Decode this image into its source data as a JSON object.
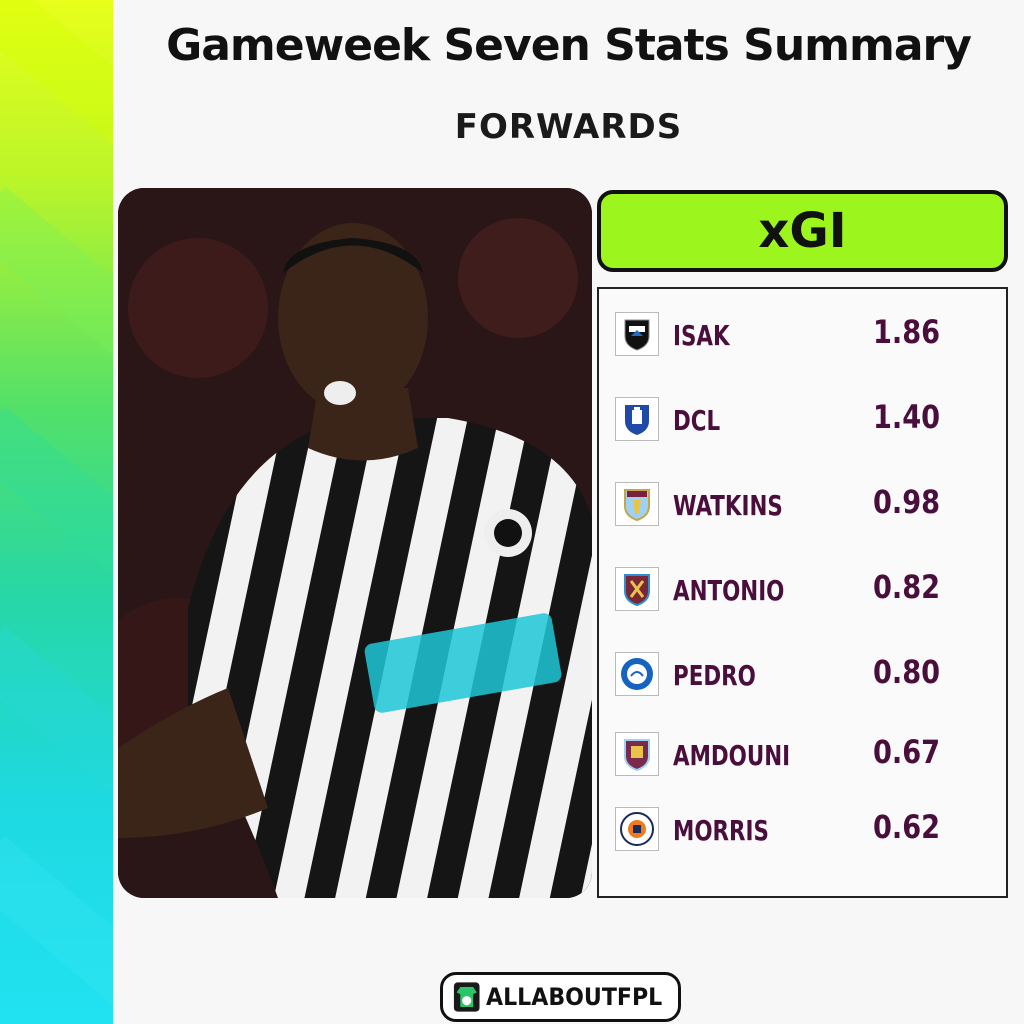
{
  "header": {
    "title": "Gameweek Seven Stats Summary",
    "subtitle": "FORWARDS"
  },
  "metric": {
    "label": "xGI",
    "accent_color": "#9cf51c"
  },
  "players": [
    {
      "crest": "newcastle-crest-icon",
      "name": "ISAK",
      "value": "1.86"
    },
    {
      "crest": "everton-crest-icon",
      "name": "DCL",
      "value": "1.40"
    },
    {
      "crest": "aston-villa-crest-icon",
      "name": "WATKINS",
      "value": "0.98"
    },
    {
      "crest": "west-ham-crest-icon",
      "name": "ANTONIO",
      "value": "0.82"
    },
    {
      "crest": "brighton-crest-icon",
      "name": "PEDRO",
      "value": "0.80"
    },
    {
      "crest": "burnley-crest-icon",
      "name": "AMDOUNI",
      "value": "0.67"
    },
    {
      "crest": "luton-crest-icon",
      "name": "MORRIS",
      "value": "0.62"
    }
  ],
  "footer": {
    "brand": "ALLABOUTFPL"
  },
  "colors": {
    "text_primary": "#111111",
    "player_text": "#4a0e3c"
  }
}
